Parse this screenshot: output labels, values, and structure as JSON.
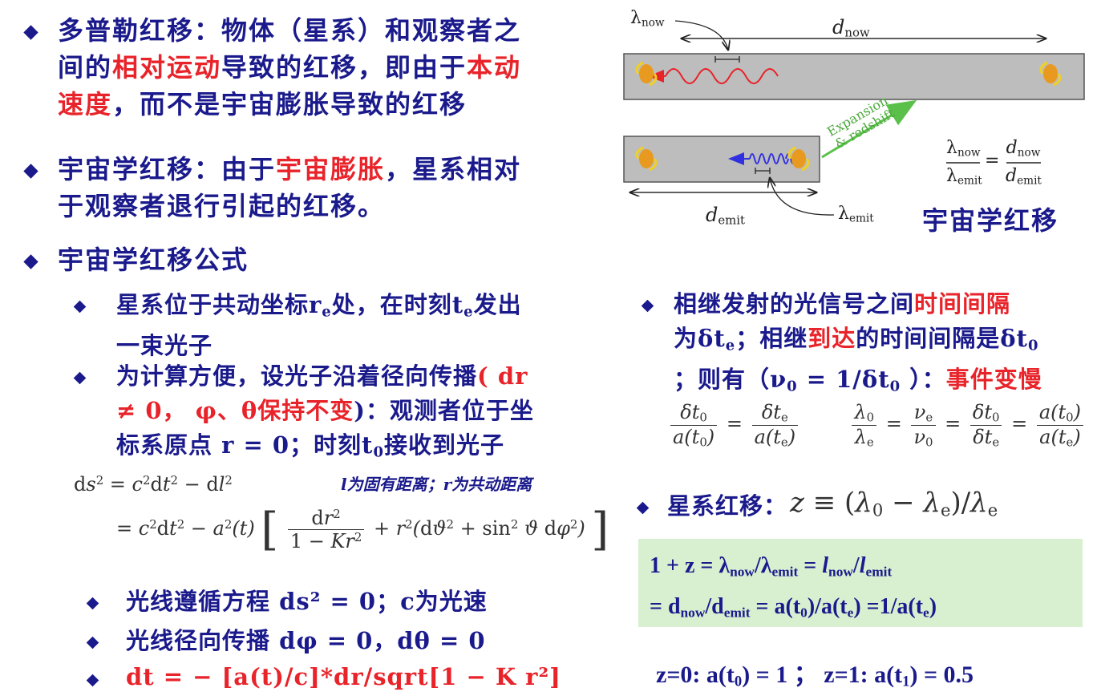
{
  "left": {
    "b1": {
      "l1": "多普勒红移：物体（星系）和观察者之",
      "l2a": "间的",
      "l2r": "相对运动",
      "l2b": "导致的红移，即由于",
      "l2r2": "本动",
      "l3r": "速度",
      "l3b": "，而不是宇宙膨胀导致的红移"
    },
    "b2": {
      "l1a": "宇宙学红移：由于",
      "l1r": "宇宙膨胀",
      "l1b": "，星系相对",
      "l2": "于观察者退行引起的红移。"
    },
    "b3": {
      "l1": "宇宙学红移公式"
    },
    "s1": {
      "l1a": "星系位于共动坐标r",
      "l1sub": "e",
      "l1b": "处，在时刻t",
      "l1sub2": "e",
      "l1c": "发出",
      "l2": "一束光子"
    },
    "s2": {
      "l1a": "为计算方便，设光子沿着径向传播",
      "l1r": "( dr",
      "l2r": "≠ 0， φ、θ保持不变",
      "l2b": ")：观测者位于坐",
      "l3a": "标系原点 r = 0；时刻t",
      "l3sub": "0",
      "l3b": "接收到光子"
    },
    "metric_note": {
      "a": "l",
      "b": "为固有距离；r为共动距离"
    },
    "s3": {
      "text": "光线遵循方程 ds² = 0；c为光速"
    },
    "s4": {
      "text": "光线径向传播 dφ = 0，dθ = 0"
    },
    "s5": {
      "text": "dt = − [a(t)/c]*dr/sqrt[1 − K r²]"
    }
  },
  "right": {
    "diagram": {
      "lambda_now": "λ",
      "lambda_now_sub": "now",
      "d_now": "d",
      "d_now_sub": "now",
      "expansion_l1": "Expansion",
      "expansion_l2": "& redshift",
      "d_emit": "d",
      "d_emit_sub": "emit",
      "lambda_emit": "λ",
      "lambda_emit_sub": "emit",
      "caption": "宇宙学红移"
    },
    "r1": {
      "l1a": "相继发射的光信号之间",
      "l1r": "时间间隔",
      "l2a": "为δt",
      "l2sub": "e",
      "l2b": "；相继",
      "l2r": "到达",
      "l2c": "的时间间隔是δt",
      "l2sub2": "0",
      "l3a": "；则有（ν",
      "l3sub": "0",
      "l3b": " = 1/δt",
      "l3sub2": "0",
      "l3c": " ）：",
      "l3r": "事件变慢"
    },
    "r2": {
      "label": "星系红移："
    },
    "box": {
      "l1": "1 + z = λ",
      "l1s1": "now",
      "l1m": "/λ",
      "l1s2": "emit",
      "l1e": " = ",
      "l1l": "l",
      "l1s3": "now",
      "l1sl": "/",
      "l1l2": "l",
      "l1s4": "emit",
      "l2a": " = d",
      "l2s1": "now",
      "l2b": "/d",
      "l2s2": "emit",
      "l2c": " = a(t",
      "l2s3": "0",
      "l2d": ")/a(t",
      "l2s4": "e",
      "l2e": ") =1/a(t",
      "l2s5": "e",
      "l2f": ")"
    },
    "bottom": {
      "a": "z=0: a(t",
      "s1": "0",
      "b": ") = 1 ；  z=1: a(t",
      "s2": "1",
      "c": ") = 0.5"
    }
  },
  "colors": {
    "blue": "#1a1a8c",
    "red": "#e8232a",
    "green_box": "#d8f0d0",
    "gray": "#bdbdbd"
  }
}
